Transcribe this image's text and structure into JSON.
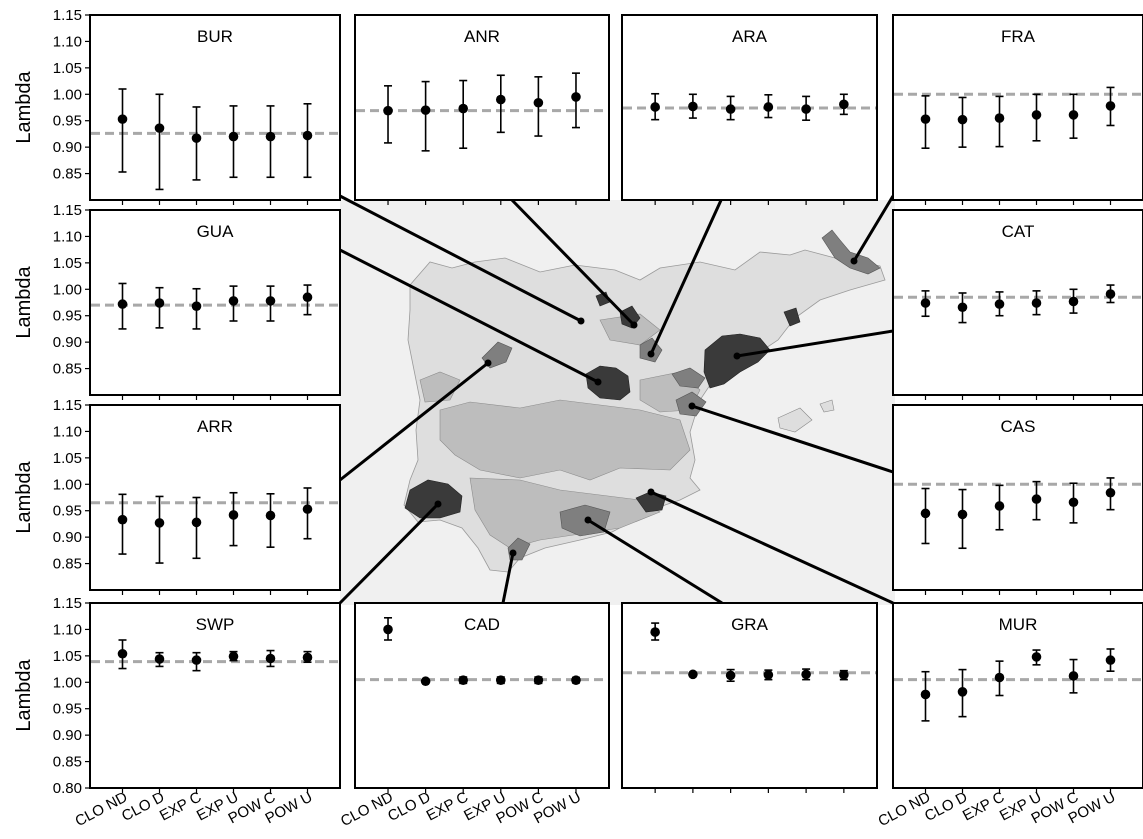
{
  "figure": {
    "ylabel": "Lambda",
    "colors": {
      "point": "#000000",
      "reference_line": "#a8a8a8",
      "map_outside": "#f0f0f0",
      "map_land": "#dedede",
      "map_region_light": "#bdbdbd",
      "map_region_mid": "#7f7f7f",
      "map_region_dark": "#3a3a3a",
      "connector": "#000000"
    }
  },
  "chart_data": [
    {
      "type": "scatter",
      "title": "BUR",
      "errorbars": true,
      "categories": [
        "CLO ND",
        "CLO D",
        "EXP C",
        "EXP U",
        "POW C",
        "POW U"
      ],
      "values": [
        0.953,
        0.936,
        0.917,
        0.92,
        0.92,
        0.922
      ],
      "lower": [
        0.853,
        0.82,
        0.838,
        0.843,
        0.843,
        0.843
      ],
      "upper": [
        1.01,
        1.0,
        0.976,
        0.978,
        0.978,
        0.982
      ],
      "reference": 0.926,
      "ylim": [
        0.8,
        1.15
      ],
      "yticks": [
        "0.85",
        "0.90",
        "0.95",
        "1.00",
        "1.05",
        "1.10",
        "1.15"
      ],
      "ylabel": "Lambda",
      "xlabel": ""
    },
    {
      "type": "scatter",
      "title": "ANR",
      "errorbars": true,
      "categories": [
        "CLO ND",
        "CLO D",
        "EXP C",
        "EXP U",
        "POW C",
        "POW U"
      ],
      "values": [
        0.969,
        0.97,
        0.973,
        0.99,
        0.984,
        0.995
      ],
      "lower": [
        0.908,
        0.893,
        0.898,
        0.928,
        0.921,
        0.937
      ],
      "upper": [
        1.016,
        1.024,
        1.026,
        1.036,
        1.033,
        1.04
      ],
      "reference": 0.969,
      "ylim": [
        0.8,
        1.15
      ]
    },
    {
      "type": "scatter",
      "title": "ARA",
      "errorbars": true,
      "categories": [
        "CLO ND",
        "CLO D",
        "EXP C",
        "EXP U",
        "POW C",
        "POW U"
      ],
      "values": [
        0.976,
        0.977,
        0.972,
        0.976,
        0.972,
        0.981
      ],
      "lower": [
        0.952,
        0.955,
        0.952,
        0.956,
        0.951,
        0.962
      ],
      "upper": [
        1.001,
        1.0,
        0.996,
        0.999,
        0.996,
        1.0
      ],
      "reference": 0.974,
      "ylim": [
        0.8,
        1.15
      ]
    },
    {
      "type": "scatter",
      "title": "FRA",
      "errorbars": true,
      "categories": [
        "CLO ND",
        "CLO D",
        "EXP C",
        "EXP U",
        "POW C",
        "POW U"
      ],
      "values": [
        0.953,
        0.952,
        0.955,
        0.961,
        0.961,
        0.978
      ],
      "lower": [
        0.898,
        0.9,
        0.901,
        0.912,
        0.917,
        0.941
      ],
      "upper": [
        0.997,
        0.994,
        0.996,
        1.0,
        1.0,
        1.013
      ],
      "reference": 1.0,
      "ylim": [
        0.8,
        1.15
      ]
    },
    {
      "type": "scatter",
      "title": "GUA",
      "errorbars": true,
      "categories": [
        "CLO ND",
        "CLO D",
        "EXP C",
        "EXP U",
        "POW C",
        "POW U"
      ],
      "values": [
        0.972,
        0.974,
        0.968,
        0.978,
        0.978,
        0.985
      ],
      "lower": [
        0.925,
        0.927,
        0.925,
        0.94,
        0.94,
        0.952
      ],
      "upper": [
        1.011,
        1.003,
        1.001,
        1.006,
        1.006,
        1.008
      ],
      "reference": 0.97,
      "ylim": [
        0.8,
        1.15
      ],
      "yticks": [
        "0.85",
        "0.90",
        "0.95",
        "1.00",
        "1.05",
        "1.10",
        "1.15"
      ],
      "ylabel": "Lambda"
    },
    {
      "type": "scatter",
      "title": "CAT",
      "errorbars": true,
      "categories": [
        "CLO ND",
        "CLO D",
        "EXP C",
        "EXP U",
        "POW C",
        "POW U"
      ],
      "values": [
        0.974,
        0.966,
        0.972,
        0.974,
        0.977,
        0.991
      ],
      "lower": [
        0.949,
        0.937,
        0.95,
        0.952,
        0.955,
        0.975
      ],
      "upper": [
        0.997,
        0.993,
        0.995,
        0.997,
        1.0,
        1.008
      ],
      "reference": 0.985,
      "ylim": [
        0.8,
        1.15
      ]
    },
    {
      "type": "scatter",
      "title": "ARR",
      "errorbars": true,
      "categories": [
        "CLO ND",
        "CLO D",
        "EXP C",
        "EXP U",
        "POW C",
        "POW U"
      ],
      "values": [
        0.933,
        0.927,
        0.928,
        0.942,
        0.941,
        0.953
      ],
      "lower": [
        0.868,
        0.851,
        0.86,
        0.884,
        0.881,
        0.897
      ],
      "upper": [
        0.981,
        0.977,
        0.975,
        0.984,
        0.982,
        0.993
      ],
      "reference": 0.965,
      "ylim": [
        0.8,
        1.15
      ],
      "yticks": [
        "0.85",
        "0.90",
        "0.95",
        "1.00",
        "1.05",
        "1.10",
        "1.15"
      ],
      "ylabel": "Lambda"
    },
    {
      "type": "scatter",
      "title": "CAS",
      "errorbars": true,
      "categories": [
        "CLO ND",
        "CLO D",
        "EXP C",
        "EXP U",
        "POW C",
        "POW U"
      ],
      "values": [
        0.945,
        0.943,
        0.959,
        0.972,
        0.966,
        0.984
      ],
      "lower": [
        0.888,
        0.879,
        0.914,
        0.933,
        0.927,
        0.952
      ],
      "upper": [
        0.992,
        0.99,
        0.998,
        1.005,
        1.002,
        1.012
      ],
      "reference": 1.0,
      "ylim": [
        0.8,
        1.15
      ]
    },
    {
      "type": "scatter",
      "title": "SWP",
      "errorbars": true,
      "categories": [
        "CLO ND",
        "CLO D",
        "EXP C",
        "EXP U",
        "POW C",
        "POW U"
      ],
      "values": [
        1.054,
        1.044,
        1.042,
        1.049,
        1.045,
        1.047
      ],
      "lower": [
        1.026,
        1.03,
        1.022,
        1.041,
        1.03,
        1.038
      ],
      "upper": [
        1.08,
        1.056,
        1.056,
        1.058,
        1.06,
        1.058
      ],
      "reference": 1.039,
      "ylim": [
        0.8,
        1.15
      ],
      "yticks": [
        "0.80",
        "0.85",
        "0.90",
        "0.95",
        "1.00",
        "1.05",
        "1.10",
        "1.15"
      ],
      "ylabel": "Lambda",
      "xticks": [
        "CLO ND",
        "CLO D",
        "EXP C",
        "EXP U",
        "POW C",
        "POW U"
      ]
    },
    {
      "type": "scatter",
      "title": "CAD",
      "errorbars": true,
      "categories": [
        "CLO ND",
        "CLO D",
        "EXP C",
        "EXP U",
        "POW C",
        "POW U"
      ],
      "values": [
        1.1,
        1.002,
        1.004,
        1.004,
        1.004,
        1.004
      ],
      "lower": [
        1.08,
        1.0,
        0.998,
        0.998,
        0.998,
        0.999
      ],
      "upper": [
        1.122,
        1.004,
        1.01,
        1.01,
        1.01,
        1.009
      ],
      "reference": 1.005,
      "ylim": [
        0.8,
        1.15
      ],
      "xticks": [
        "CLO ND",
        "CLO D",
        "EXP C",
        "EXP U",
        "POW C",
        "POW U"
      ]
    },
    {
      "type": "scatter",
      "title": "GRA",
      "errorbars": true,
      "categories": [
        "CLO ND",
        "CLO D",
        "EXP C",
        "EXP U",
        "POW C",
        "POW U"
      ],
      "values": [
        1.095,
        1.015,
        1.013,
        1.014,
        1.015,
        1.014
      ],
      "lower": [
        1.08,
        1.013,
        1.002,
        1.005,
        1.005,
        1.005
      ],
      "upper": [
        1.112,
        1.017,
        1.024,
        1.023,
        1.025,
        1.022
      ],
      "reference": 1.018,
      "ylim": [
        0.8,
        1.15
      ]
    },
    {
      "type": "scatter",
      "title": "MUR",
      "errorbars": true,
      "categories": [
        "CLO ND",
        "CLO D",
        "EXP C",
        "EXP U",
        "POW C",
        "POW U"
      ],
      "values": [
        0.977,
        0.982,
        1.009,
        1.048,
        1.012,
        1.042
      ],
      "lower": [
        0.927,
        0.935,
        0.975,
        1.033,
        0.98,
        1.021
      ],
      "upper": [
        1.02,
        1.024,
        1.04,
        1.061,
        1.043,
        1.063
      ],
      "reference": 1.005,
      "ylim": [
        0.8,
        1.15
      ],
      "xticks": [
        "CLO ND",
        "CLO D",
        "EXP C",
        "EXP U",
        "POW C",
        "POW U"
      ]
    }
  ]
}
